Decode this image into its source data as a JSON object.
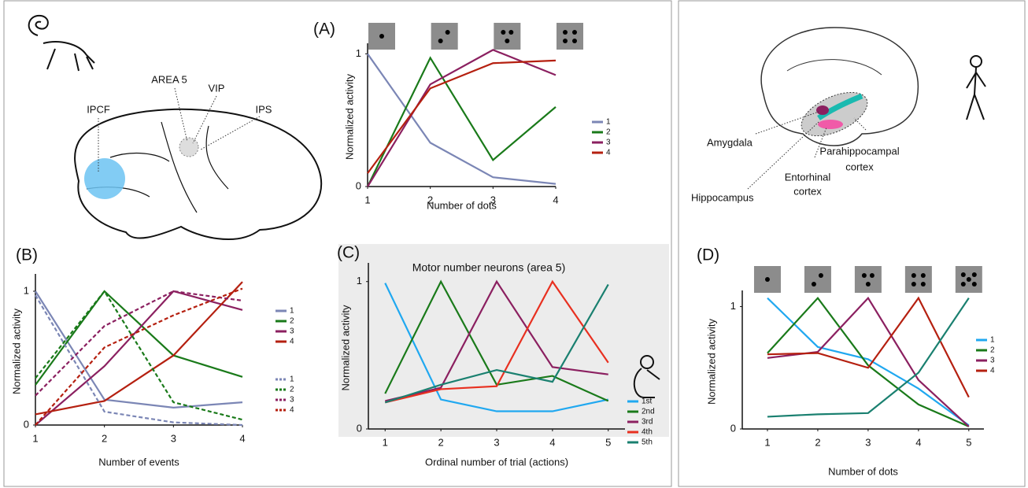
{
  "chart_data": [
    {
      "type": "line",
      "panel": "(A)",
      "x_label": "Number of dots",
      "y_label": "Normalized activity",
      "x": [
        1,
        2,
        3,
        4
      ],
      "xlim": [
        1,
        4
      ],
      "xticks": [
        1,
        2,
        3,
        4
      ],
      "ylim": [
        0,
        1.05
      ],
      "yticks": [
        0,
        1
      ],
      "series": [
        {
          "name": "1",
          "color": "#7b86b5",
          "values": [
            1.0,
            0.33,
            0.07,
            0.02
          ]
        },
        {
          "name": "2",
          "color": "#1a7a1a",
          "values": [
            0.0,
            0.97,
            0.2,
            0.6
          ]
        },
        {
          "name": "3",
          "color": "#8b2060",
          "values": [
            0.0,
            0.77,
            1.03,
            0.84
          ]
        },
        {
          "name": "4",
          "color": "#b52010",
          "values": [
            0.1,
            0.74,
            0.93,
            0.95
          ]
        }
      ]
    },
    {
      "type": "line",
      "panel": "(B)",
      "x_label": "Number of events",
      "y_label": "Normalized activity",
      "x": [
        1,
        2,
        3,
        4
      ],
      "xlim": [
        1,
        4
      ],
      "xticks": [
        1,
        2,
        3,
        4
      ],
      "ylim": [
        0,
        1.1
      ],
      "yticks": [
        0,
        1
      ],
      "series": [
        {
          "name": "1",
          "color": "#7b86b5",
          "values": [
            1.0,
            0.19,
            0.13,
            0.17
          ]
        },
        {
          "name": "2",
          "color": "#1a7a1a",
          "values": [
            0.3,
            1.0,
            0.52,
            0.36
          ]
        },
        {
          "name": "3",
          "color": "#8b2060",
          "values": [
            0.0,
            0.44,
            1.0,
            0.86
          ]
        },
        {
          "name": "4",
          "color": "#b52010",
          "values": [
            0.08,
            0.18,
            0.52,
            1.07
          ]
        },
        {
          "name": "1",
          "color": "#7b86b5",
          "dashed": true,
          "values": [
            0.97,
            0.1,
            0.02,
            0.0
          ]
        },
        {
          "name": "2",
          "color": "#1a7a1a",
          "dashed": true,
          "values": [
            0.35,
            1.0,
            0.17,
            0.04
          ]
        },
        {
          "name": "3",
          "color": "#8b2060",
          "dashed": true,
          "values": [
            0.22,
            0.74,
            1.0,
            0.93
          ]
        },
        {
          "name": "4",
          "color": "#b52010",
          "dashed": true,
          "values": [
            0.0,
            0.58,
            0.82,
            1.02
          ]
        }
      ]
    },
    {
      "type": "line",
      "panel": "(C)",
      "title": "Motor number neurons (area 5)",
      "x_label": "Ordinal number of trial (actions)",
      "y_label": "Normalized activity",
      "x": [
        1,
        2,
        3,
        4,
        5
      ],
      "xlim": [
        0.7,
        5.3
      ],
      "xticks": [
        1,
        2,
        3,
        4,
        5
      ],
      "ylim": [
        0,
        1.1
      ],
      "yticks": [
        0,
        1
      ],
      "series": [
        {
          "name": "1st",
          "color": "#20a8f0",
          "values": [
            0.99,
            0.2,
            0.12,
            0.12,
            0.2
          ]
        },
        {
          "name": "2nd",
          "color": "#1a7a1a",
          "values": [
            0.24,
            1.0,
            0.3,
            0.36,
            0.19
          ]
        },
        {
          "name": "3rd",
          "color": "#8b2060",
          "values": [
            0.19,
            0.28,
            1.0,
            0.42,
            0.37
          ]
        },
        {
          "name": "4th",
          "color": "#e83020",
          "values": [
            0.18,
            0.27,
            0.29,
            1.0,
            0.45
          ]
        },
        {
          "name": "5th",
          "color": "#1a8070",
          "values": [
            0.18,
            0.3,
            0.4,
            0.32,
            0.98
          ]
        }
      ]
    },
    {
      "type": "line",
      "panel": "(D)",
      "x_label": "Number of dots",
      "y_label": "Normalized activity",
      "x": [
        1,
        2,
        3,
        4,
        5
      ],
      "xlim": [
        0.5,
        5.3
      ],
      "xticks": [
        1,
        2,
        3,
        4,
        5
      ],
      "ylim": [
        0,
        1.1
      ],
      "yticks": [
        0,
        1
      ],
      "series": [
        {
          "name": "1",
          "color": "#20a8f0",
          "values": [
            1.07,
            0.67,
            0.57,
            0.33,
            0.03
          ]
        },
        {
          "name": "2",
          "color": "#1a7a1a",
          "values": [
            0.62,
            1.07,
            0.52,
            0.2,
            0.02
          ]
        },
        {
          "name": "3",
          "color": "#8b2060",
          "values": [
            0.58,
            0.63,
            1.07,
            0.4,
            0.02
          ]
        },
        {
          "name": "4",
          "color": "#b52010",
          "values": [
            0.61,
            0.62,
            0.5,
            1.07,
            0.26
          ]
        },
        {
          "color": "#1a8070",
          "values": [
            0.1,
            0.12,
            0.13,
            0.46,
            1.07
          ]
        }
      ]
    }
  ],
  "monkey_brain_labels": [
    "IPCF",
    "AREA 5",
    "VIP",
    "IPS"
  ],
  "human_brain_labels": {
    "amygdala": "Amygdala",
    "hippocampus": "Hippocampus",
    "entorhinal": [
      "Entorhinal",
      "cortex"
    ],
    "parahippocampal": [
      "Parahippocampal",
      "cortex"
    ]
  }
}
